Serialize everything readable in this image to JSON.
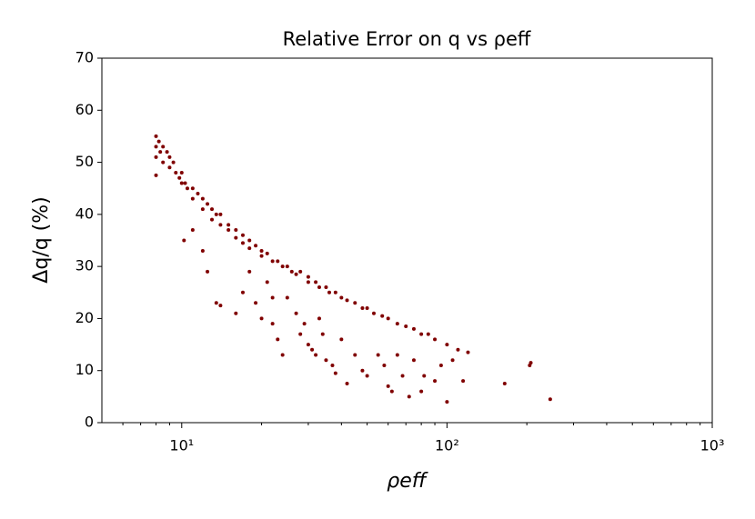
{
  "chart_data": {
    "type": "scatter",
    "title": "Relative  Error on q vs ρeff",
    "x_label": "ρeff",
    "y_label": "Δq/q  (%)",
    "color": "#800000",
    "xscale": "log",
    "xlim": [
      5,
      1000
    ],
    "ylim": [
      0,
      70
    ],
    "xticks": [
      {
        "value": 10,
        "label": "10¹"
      },
      {
        "value": 100,
        "label": "10²"
      },
      {
        "value": 1000,
        "label": "10³"
      }
    ],
    "xminorticks": [
      6,
      7,
      8,
      9,
      20,
      30,
      40,
      50,
      60,
      70,
      80,
      90,
      200,
      300,
      400,
      500,
      600,
      700,
      800,
      900
    ],
    "yticks": [
      0,
      10,
      20,
      30,
      40,
      50,
      60,
      70
    ],
    "x": [
      8,
      8,
      8,
      8.2,
      8.3,
      8.5,
      8.5,
      8.8,
      9,
      9,
      9.3,
      9.5,
      9.8,
      10,
      10,
      10.3,
      10.5,
      11,
      11,
      11.5,
      12,
      12,
      12.5,
      13,
      13,
      13.5,
      14,
      14,
      15,
      15,
      16,
      16,
      17,
      17,
      18,
      18,
      19,
      20,
      20,
      21,
      22,
      23,
      24,
      25,
      26,
      27,
      28,
      30,
      30,
      32,
      33,
      35,
      36,
      38,
      40,
      42,
      45,
      48,
      50,
      53,
      57,
      60,
      65,
      70,
      75,
      80,
      85,
      90,
      100,
      110,
      120,
      8,
      10.2,
      11,
      12,
      12.5,
      13.5,
      14,
      16,
      17,
      18,
      19,
      20,
      21,
      22,
      22,
      23,
      24,
      25,
      27,
      28,
      29,
      30,
      31,
      32,
      33,
      34,
      35,
      37,
      38,
      40,
      42,
      45,
      48,
      50,
      55,
      58,
      60,
      62,
      65,
      68,
      72,
      75,
      80,
      82,
      90,
      95,
      100,
      105,
      115,
      165,
      205,
      207,
      245
    ],
    "values": [
      55,
      53,
      51,
      54,
      52,
      50,
      53,
      52,
      51,
      49,
      50,
      48,
      47,
      48,
      46,
      46,
      45,
      45,
      43,
      44,
      43,
      41,
      42,
      41,
      39,
      40,
      40,
      38,
      38,
      37,
      37,
      35.5,
      36,
      34.5,
      35,
      33.5,
      34,
      33,
      32,
      32.5,
      31,
      31,
      30,
      30,
      29,
      28.5,
      29,
      28,
      27,
      27,
      26,
      26,
      25,
      25,
      24,
      23.5,
      23,
      22,
      22,
      21,
      20.5,
      20,
      19,
      18.5,
      18,
      17,
      17,
      16,
      15,
      14,
      13.5,
      47.5,
      35,
      37,
      33,
      29,
      23,
      22.5,
      21,
      25,
      29,
      23,
      20,
      27,
      24,
      19,
      16,
      13,
      24,
      21,
      17,
      19,
      15,
      14,
      13,
      20,
      17,
      12,
      11,
      9.5,
      16,
      7.5,
      13,
      10,
      9,
      13,
      11,
      7,
      6,
      13,
      9,
      5,
      12,
      6,
      9,
      8,
      11,
      4,
      12,
      8,
      7.5,
      11,
      11.5,
      4.5
    ]
  }
}
